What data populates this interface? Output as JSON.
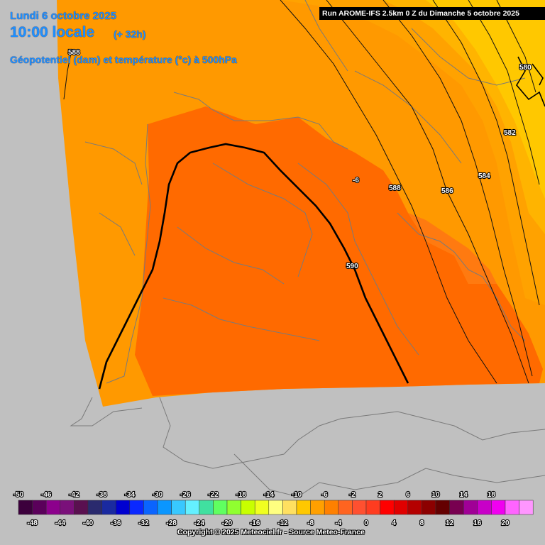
{
  "header": {
    "date": "Lundi 6 octobre 2025",
    "time": "10:00 locale",
    "lead": "(+ 32h)",
    "parameter": "Géopotentiel (dam) et température (°c) à 500hPa",
    "run": "Run AROME-IFS 2.5km 0 Z du Dimanche 5 octobre 2025"
  },
  "contour_labels": [
    "588",
    "590",
    "588",
    "586",
    "584",
    "582",
    "580",
    "-6"
  ],
  "legend": {
    "top_ticks": [
      "-50",
      "-46",
      "-42",
      "-38",
      "-34",
      "-30",
      "-26",
      "-22",
      "-18",
      "-14",
      "-10",
      "-6",
      "-2",
      "2",
      "6",
      "10",
      "14",
      "18"
    ],
    "bottom_ticks": [
      "-48",
      "-44",
      "-40",
      "-36",
      "-32",
      "-28",
      "-24",
      "-20",
      "-16",
      "-12",
      "-8",
      "-4",
      "0",
      "4",
      "8",
      "12",
      "16",
      "20"
    ],
    "colors": [
      "#3c003c",
      "#5a005a",
      "#8c008c",
      "#7a107a",
      "#5a1050",
      "#2a2a6e",
      "#1a2aa0",
      "#0000d0",
      "#0a28ff",
      "#0a64ff",
      "#0a96ff",
      "#38c8ff",
      "#64f0ff",
      "#40e0a0",
      "#60ff60",
      "#90ff30",
      "#c8ff00",
      "#f0ff20",
      "#ffff80",
      "#ffe060",
      "#ffc800",
      "#ffa000",
      "#ff8000",
      "#ff6420",
      "#ff5030",
      "#ff3c20",
      "#ff0000",
      "#e00000",
      "#b40000",
      "#8c0000",
      "#640000",
      "#780050",
      "#a00096",
      "#c800c8",
      "#f000f0",
      "#ff64ff",
      "#ff96ff"
    ]
  },
  "copyright": "Copyright © 2025 Meteociel.fr - Source Meteo-France"
}
